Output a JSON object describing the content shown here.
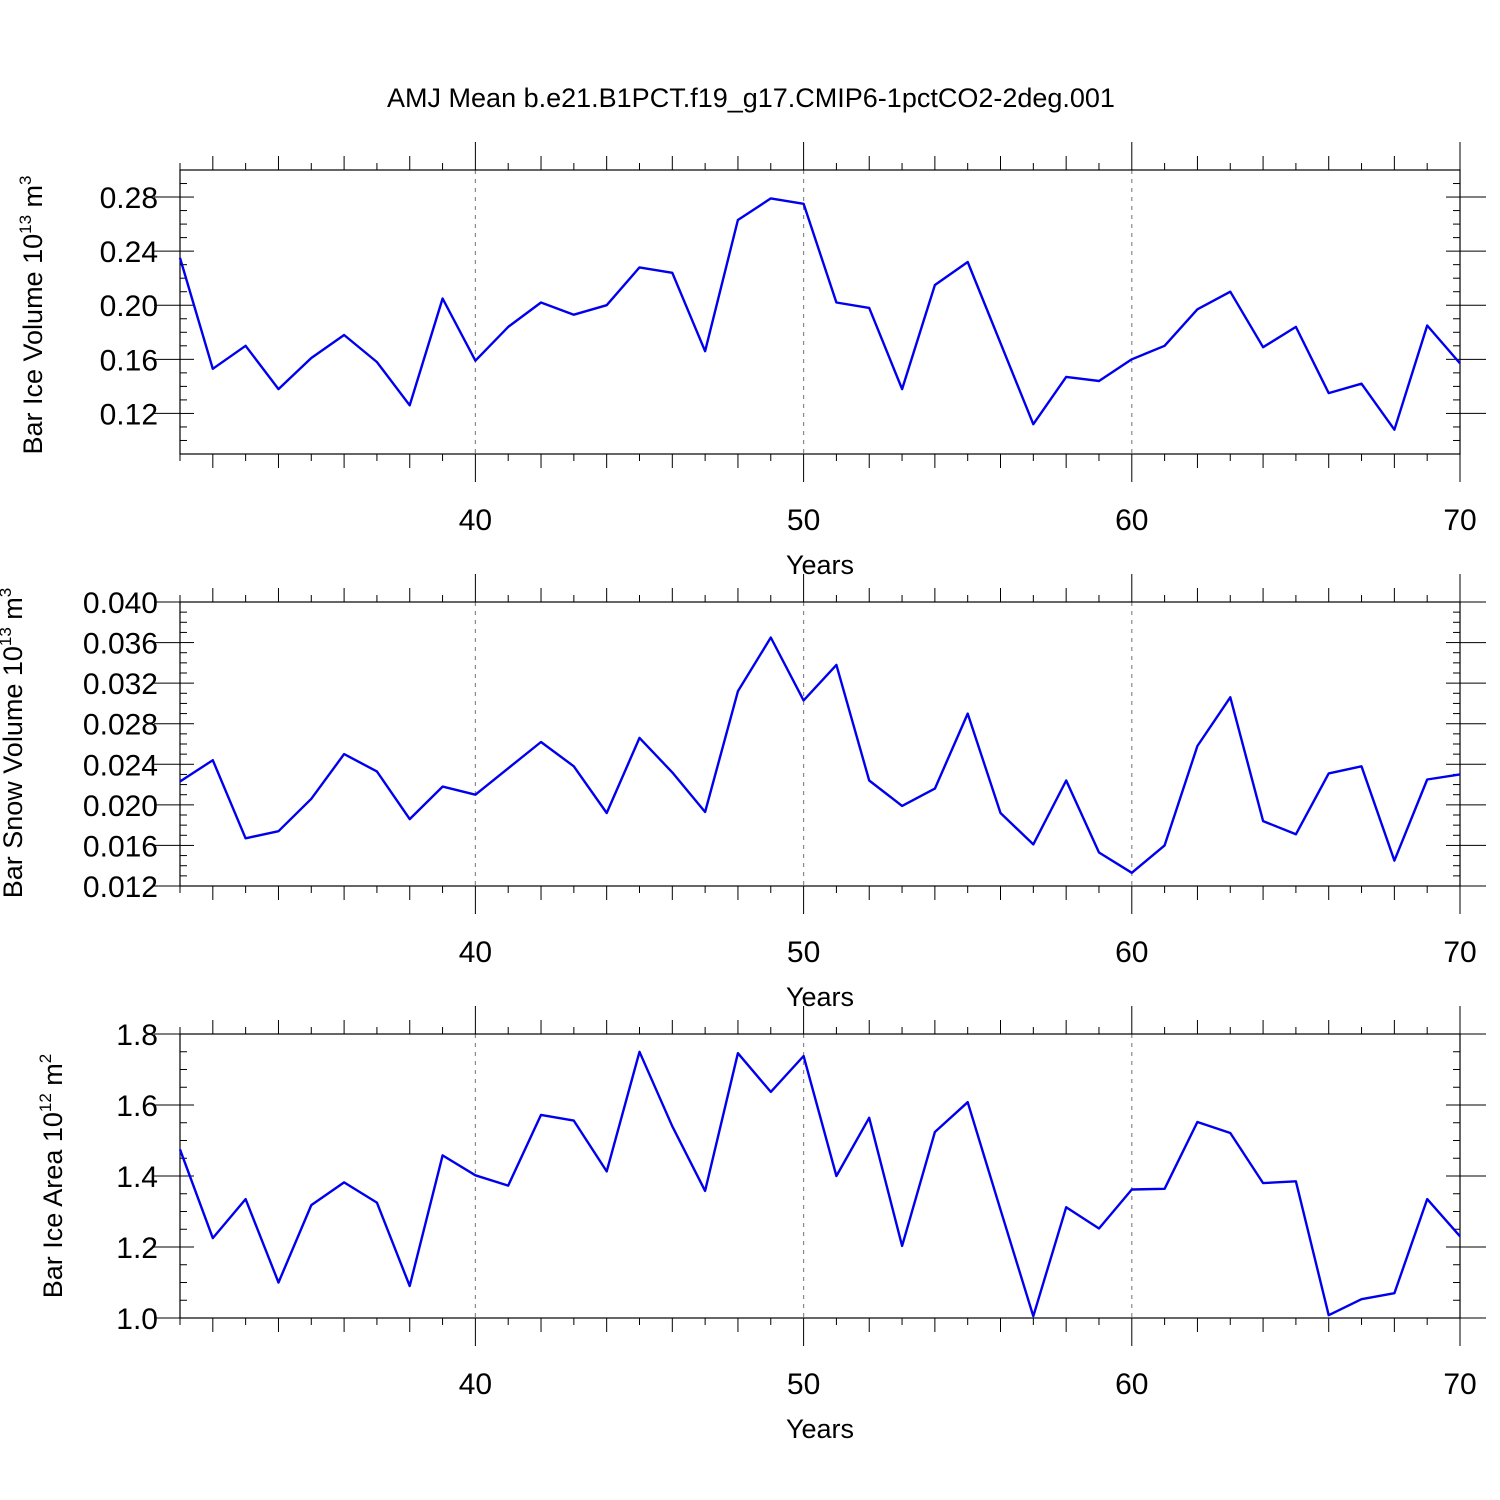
{
  "figure": {
    "title": "AMJ Mean b.e21.B1PCT.f19_g17.CMIP6-1pctCO2-2deg.001"
  },
  "chart_data": [
    {
      "type": "line",
      "title": "",
      "xlabel": "Years",
      "ylabel": "Bar Ice Volume 10",
      "ylabel_exponent": "13",
      "ylabel_unit": " m",
      "ylabel_unit_exponent": "3",
      "xlim": [
        31,
        70
      ],
      "ylim": [
        0.09,
        0.3
      ],
      "xticks": [
        40,
        50,
        60,
        70
      ],
      "xtick_labels": [
        "40",
        "50",
        "60",
        "70"
      ],
      "yticks": [
        0.12,
        0.16,
        0.2,
        0.24,
        0.28
      ],
      "ytick_labels": [
        "0.12",
        "0.16",
        "0.20",
        "0.24",
        "0.28"
      ],
      "grid": "dashed vertical at major x ticks",
      "line_color": "#0000ee",
      "series": [
        {
          "x": [
            31,
            32,
            33,
            34,
            35,
            36,
            37,
            38,
            39,
            40,
            41,
            42,
            43,
            44,
            45,
            46,
            47,
            48,
            49,
            50,
            51,
            52,
            53,
            54,
            55,
            56,
            57,
            58,
            59,
            60,
            61,
            62,
            63,
            64,
            65,
            66,
            67,
            68,
            69,
            70
          ],
          "values": [
            0.235,
            0.153,
            0.17,
            0.138,
            0.161,
            0.178,
            0.158,
            0.126,
            0.205,
            0.159,
            0.184,
            0.202,
            0.193,
            0.2,
            0.228,
            0.224,
            0.166,
            0.263,
            0.279,
            0.275,
            0.202,
            0.198,
            0.138,
            0.215,
            0.232,
            0.172,
            0.112,
            0.147,
            0.144,
            0.16,
            0.17,
            0.197,
            0.21,
            0.169,
            0.184,
            0.135,
            0.142,
            0.108,
            0.185,
            0.157
          ]
        }
      ]
    },
    {
      "type": "line",
      "title": "",
      "xlabel": "Years",
      "ylabel": "Bar Snow Volume 10",
      "ylabel_exponent": "13",
      "ylabel_unit": " m",
      "ylabel_unit_exponent": "3",
      "xlim": [
        31,
        70
      ],
      "ylim": [
        0.012,
        0.04
      ],
      "xticks": [
        40,
        50,
        60,
        70
      ],
      "xtick_labels": [
        "40",
        "50",
        "60",
        "70"
      ],
      "yticks": [
        0.012,
        0.016,
        0.02,
        0.024,
        0.028,
        0.032,
        0.036,
        0.04
      ],
      "ytick_labels": [
        "0.012",
        "0.016",
        "0.020",
        "0.024",
        "0.028",
        "0.032",
        "0.036",
        "0.040"
      ],
      "grid": "dashed vertical at major x ticks",
      "line_color": "#0000ee",
      "series": [
        {
          "x": [
            31,
            32,
            33,
            34,
            35,
            36,
            37,
            38,
            39,
            40,
            41,
            42,
            43,
            44,
            45,
            46,
            47,
            48,
            49,
            50,
            51,
            52,
            53,
            54,
            55,
            56,
            57,
            58,
            59,
            60,
            61,
            62,
            63,
            64,
            65,
            66,
            67,
            68,
            69,
            70
          ],
          "values": [
            0.0223,
            0.0244,
            0.0167,
            0.0174,
            0.0206,
            0.025,
            0.0233,
            0.0186,
            0.0218,
            0.021,
            0.0236,
            0.0262,
            0.0238,
            0.0192,
            0.0266,
            0.0232,
            0.0193,
            0.0312,
            0.0365,
            0.0303,
            0.0338,
            0.0224,
            0.0199,
            0.0216,
            0.029,
            0.0192,
            0.0161,
            0.0224,
            0.0153,
            0.0133,
            0.016,
            0.0258,
            0.0306,
            0.0184,
            0.0171,
            0.0231,
            0.0238,
            0.0145,
            0.0225,
            0.023
          ]
        }
      ]
    },
    {
      "type": "line",
      "title": "",
      "xlabel": "Years",
      "ylabel": "Bar Ice Area 10",
      "ylabel_exponent": "12",
      "ylabel_unit": " m",
      "ylabel_unit_exponent": "2",
      "xlim": [
        31,
        70
      ],
      "ylim": [
        1.0,
        1.8
      ],
      "xticks": [
        40,
        50,
        60,
        70
      ],
      "xtick_labels": [
        "40",
        "50",
        "60",
        "70"
      ],
      "yticks": [
        1.0,
        1.2,
        1.4,
        1.6,
        1.8
      ],
      "ytick_labels": [
        "1.0",
        "1.2",
        "1.4",
        "1.6",
        "1.8"
      ],
      "grid": "dashed vertical at major x ticks",
      "line_color": "#0000ee",
      "series": [
        {
          "x": [
            31,
            32,
            33,
            34,
            35,
            36,
            37,
            38,
            39,
            40,
            41,
            42,
            43,
            44,
            45,
            46,
            47,
            48,
            49,
            50,
            51,
            52,
            53,
            54,
            55,
            56,
            57,
            58,
            59,
            60,
            61,
            62,
            63,
            64,
            65,
            66,
            67,
            68,
            69,
            70
          ],
          "values": [
            1.475,
            1.225,
            1.335,
            1.1,
            1.318,
            1.382,
            1.325,
            1.09,
            1.458,
            1.402,
            1.373,
            1.572,
            1.556,
            1.413,
            1.75,
            1.54,
            1.358,
            1.746,
            1.637,
            1.738,
            1.4,
            1.564,
            1.203,
            1.524,
            1.608,
            1.305,
            1.005,
            1.312,
            1.252,
            1.362,
            1.364,
            1.552,
            1.521,
            1.38,
            1.385,
            1.008,
            1.053,
            1.07,
            1.335,
            1.23
          ]
        }
      ]
    }
  ]
}
